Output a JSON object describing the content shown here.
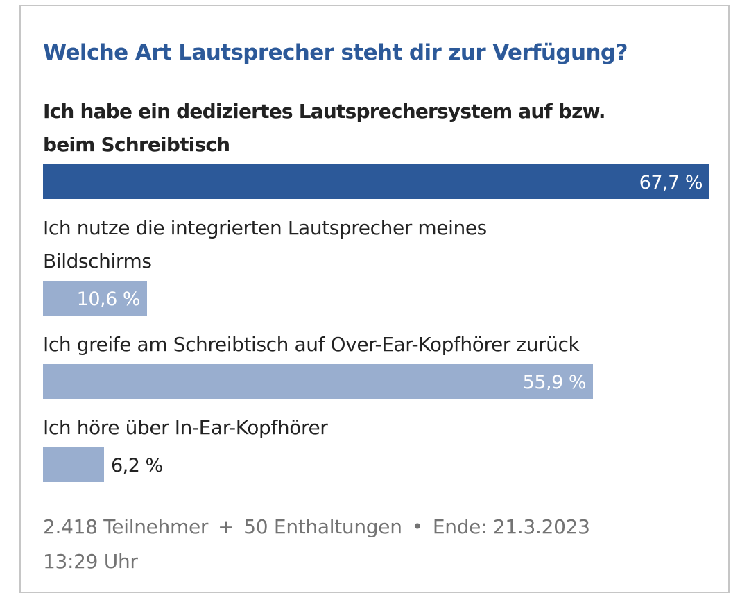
{
  "poll": {
    "question": "Welche Art Lautsprecher steht dir zur Verfügung?",
    "options": [
      {
        "label_lines": [
          "Ich habe ein dediziertes Lautsprechersystem auf bzw.",
          "beim Schreibtisch"
        ],
        "percent": 67.7,
        "percent_label": "67,7 %",
        "is_winner": true
      },
      {
        "label_lines": [
          "Ich nutze die integrierten Lautsprecher meines",
          "Bildschirms"
        ],
        "percent": 10.6,
        "percent_label": "10,6 %",
        "is_winner": false
      },
      {
        "label_lines": [
          "Ich greife am Schreibtisch auf Over-Ear-Kopfhörer zurück"
        ],
        "percent": 55.9,
        "percent_label": "55,9 %",
        "is_winner": false
      },
      {
        "label_lines": [
          "Ich höre über In-Ear-Kopfhörer"
        ],
        "percent": 6.2,
        "percent_label": "6,2 %",
        "is_winner": false
      }
    ],
    "footer": {
      "participants": "2.418 Teilnehmer",
      "plus_symbol": "+",
      "abstentions": "50 Enthaltungen",
      "bullet_symbol": "•",
      "end_prefix": "Ende:",
      "end_date": "21.3.2023",
      "end_time": "13:29 Uhr"
    },
    "colors": {
      "title": "#2c5999",
      "winner_bar": "#2c5999",
      "bar": "#99aecf",
      "footer_text": "#737373",
      "border": "#c6c6c6"
    }
  }
}
